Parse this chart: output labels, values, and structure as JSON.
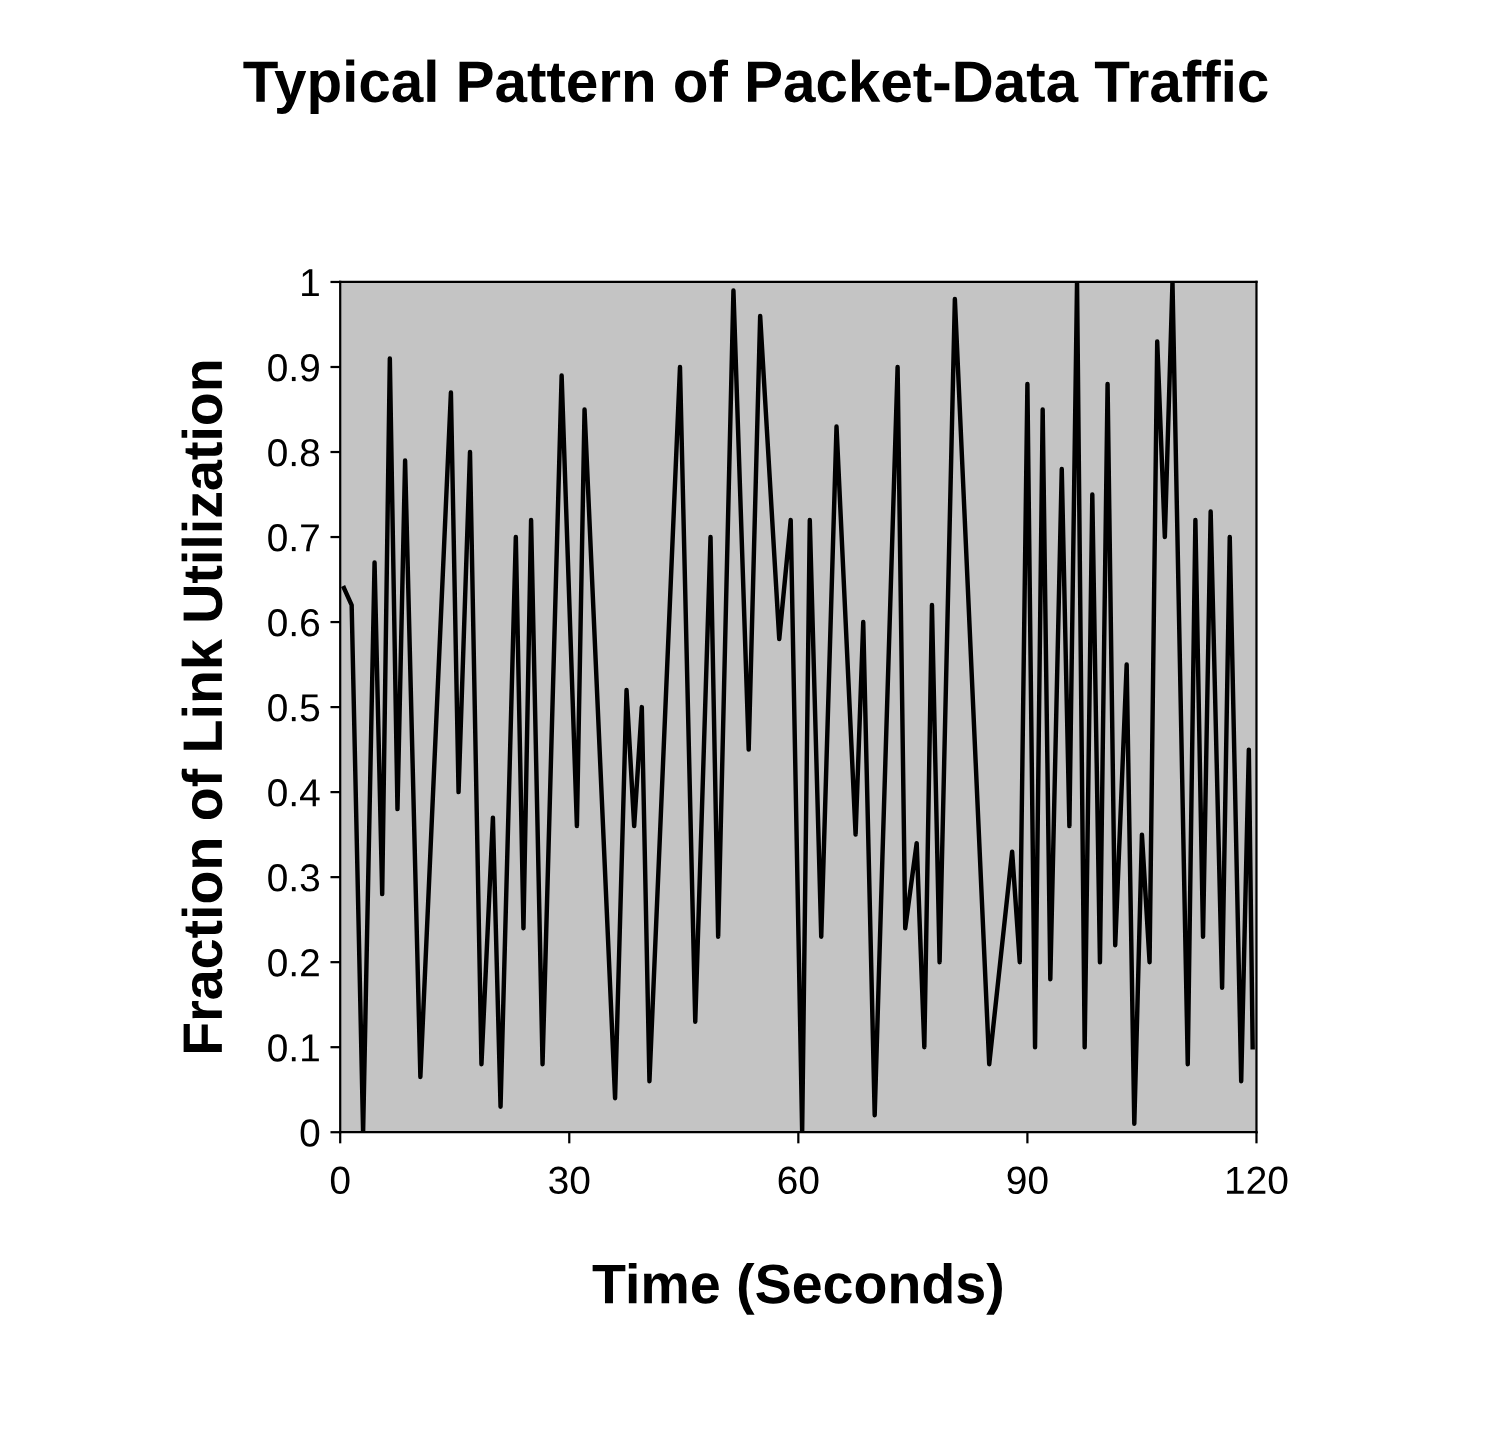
{
  "chart_data": {
    "type": "line",
    "title": "Typical Pattern of Packet-Data Traffic",
    "xlabel": "Time (Seconds)",
    "ylabel": "Fraction of Link Utilization",
    "xlim": [
      0,
      120
    ],
    "xticks": [
      0,
      30,
      60,
      90,
      120
    ],
    "ylim": [
      0,
      1
    ],
    "yticks": [
      0,
      0.1,
      0.2,
      0.3,
      0.4,
      0.5,
      0.6,
      0.7,
      0.8,
      0.9,
      1
    ],
    "grid": false,
    "marker": "none",
    "line_style": "solid",
    "series": [
      {
        "color": "#000000",
        "x": [
          0.5,
          1.5,
          3,
          4.5,
          5.5,
          6.5,
          7.5,
          8.5,
          10.5,
          14.5,
          15.5,
          17,
          18.5,
          20,
          21,
          23,
          24,
          25,
          26.5,
          29,
          31,
          32,
          36,
          37.5,
          38.5,
          39.5,
          40.5,
          44.5,
          46.5,
          48.5,
          49.5,
          51.5,
          53.5,
          55,
          57.5,
          59,
          60.5,
          61.5,
          63,
          65,
          67.5,
          68.5,
          70,
          71,
          73,
          74,
          75.5,
          76.5,
          77.5,
          78.5,
          80.5,
          85,
          88,
          89,
          90,
          91,
          92,
          93,
          94.5,
          95.5,
          96.5,
          97.5,
          98.5,
          99.5,
          100.5,
          101.5,
          103,
          104,
          105,
          106,
          107,
          108,
          109,
          111,
          112,
          113,
          114,
          115.5,
          116.5,
          118,
          119,
          119.5
        ],
        "values": [
          0.64,
          0.62,
          0.0,
          0.67,
          0.28,
          0.91,
          0.38,
          0.79,
          0.065,
          0.87,
          0.4,
          0.8,
          0.08,
          0.37,
          0.03,
          0.7,
          0.24,
          0.72,
          0.08,
          0.89,
          0.36,
          0.85,
          0.04,
          0.52,
          0.36,
          0.5,
          0.06,
          0.9,
          0.13,
          0.7,
          0.23,
          0.99,
          0.45,
          0.96,
          0.58,
          0.72,
          0.0,
          0.72,
          0.23,
          0.83,
          0.35,
          0.6,
          0.02,
          0.32,
          0.9,
          0.24,
          0.34,
          0.1,
          0.62,
          0.2,
          0.98,
          0.08,
          0.33,
          0.2,
          0.88,
          0.1,
          0.85,
          0.18,
          0.78,
          0.36,
          1.0,
          0.1,
          0.75,
          0.2,
          0.88,
          0.22,
          0.55,
          0.01,
          0.35,
          0.2,
          0.93,
          0.7,
          1.0,
          0.08,
          0.72,
          0.23,
          0.73,
          0.17,
          0.7,
          0.06,
          0.45,
          0.1
        ]
      }
    ]
  }
}
